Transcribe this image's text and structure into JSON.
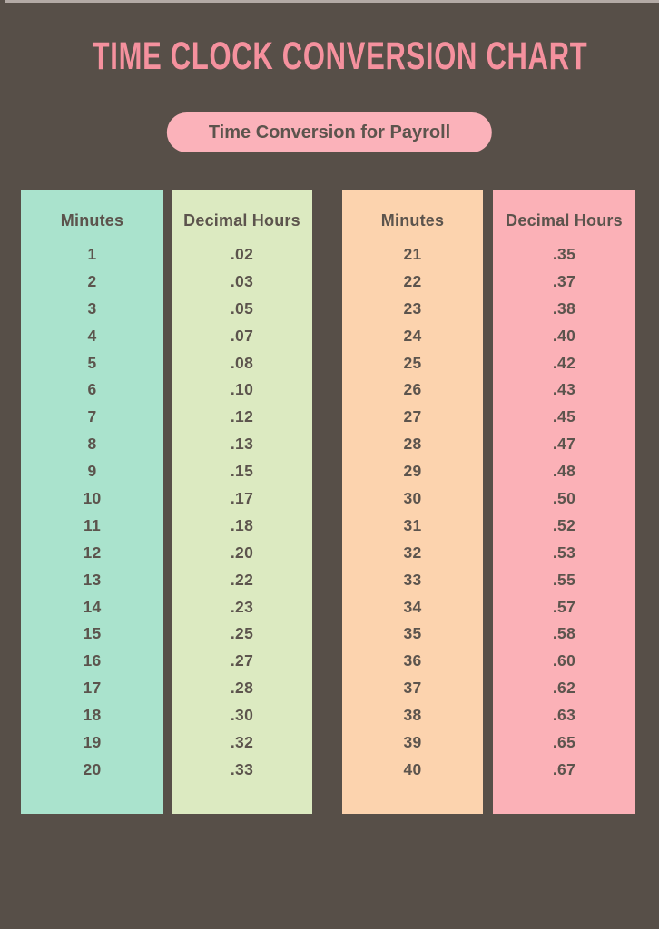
{
  "title": "TIME CLOCK CONVERSION CHART",
  "badge": "Time Conversion for Payroll",
  "colors": {
    "background": "#574F48",
    "top_strip": "#B3AAA5",
    "title": "#F5919E",
    "badge_bg": "#FBB2BA",
    "badge_text": "#5C544D",
    "cell_text": "#5C544D",
    "column_minutes_left": "#AAE3CD",
    "column_decimal_left": "#DCEAC1",
    "column_minutes_right": "#FCD3AE",
    "column_decimal_right": "#FBB1B7"
  },
  "chart_data": {
    "type": "table",
    "title": "TIME CLOCK CONVERSION CHART",
    "subtitle": "Time Conversion for Payroll",
    "legend_position": "none",
    "grid": false,
    "tables": [
      {
        "columns": [
          "Minutes",
          "Decimal Hours"
        ],
        "rows": [
          [
            "1",
            ".02"
          ],
          [
            "2",
            ".03"
          ],
          [
            "3",
            ".05"
          ],
          [
            "4",
            ".07"
          ],
          [
            "5",
            ".08"
          ],
          [
            "6",
            ".10"
          ],
          [
            "7",
            ".12"
          ],
          [
            "8",
            ".13"
          ],
          [
            "9",
            ".15"
          ],
          [
            "10",
            ".17"
          ],
          [
            "11",
            ".18"
          ],
          [
            "12",
            ".20"
          ],
          [
            "13",
            ".22"
          ],
          [
            "14",
            ".23"
          ],
          [
            "15",
            ".25"
          ],
          [
            "16",
            ".27"
          ],
          [
            "17",
            ".28"
          ],
          [
            "18",
            ".30"
          ],
          [
            "19",
            ".32"
          ],
          [
            "20",
            ".33"
          ]
        ]
      },
      {
        "columns": [
          "Minutes",
          "Decimal Hours"
        ],
        "rows": [
          [
            "21",
            ".35"
          ],
          [
            "22",
            ".37"
          ],
          [
            "23",
            ".38"
          ],
          [
            "24",
            ".40"
          ],
          [
            "25",
            ".42"
          ],
          [
            "26",
            ".43"
          ],
          [
            "27",
            ".45"
          ],
          [
            "28",
            ".47"
          ],
          [
            "29",
            ".48"
          ],
          [
            "30",
            ".50"
          ],
          [
            "31",
            ".52"
          ],
          [
            "32",
            ".53"
          ],
          [
            "33",
            ".55"
          ],
          [
            "34",
            ".57"
          ],
          [
            "35",
            ".58"
          ],
          [
            "36",
            ".60"
          ],
          [
            "37",
            ".62"
          ],
          [
            "38",
            ".63"
          ],
          [
            "39",
            ".65"
          ],
          [
            "40",
            ".67"
          ]
        ]
      }
    ]
  }
}
